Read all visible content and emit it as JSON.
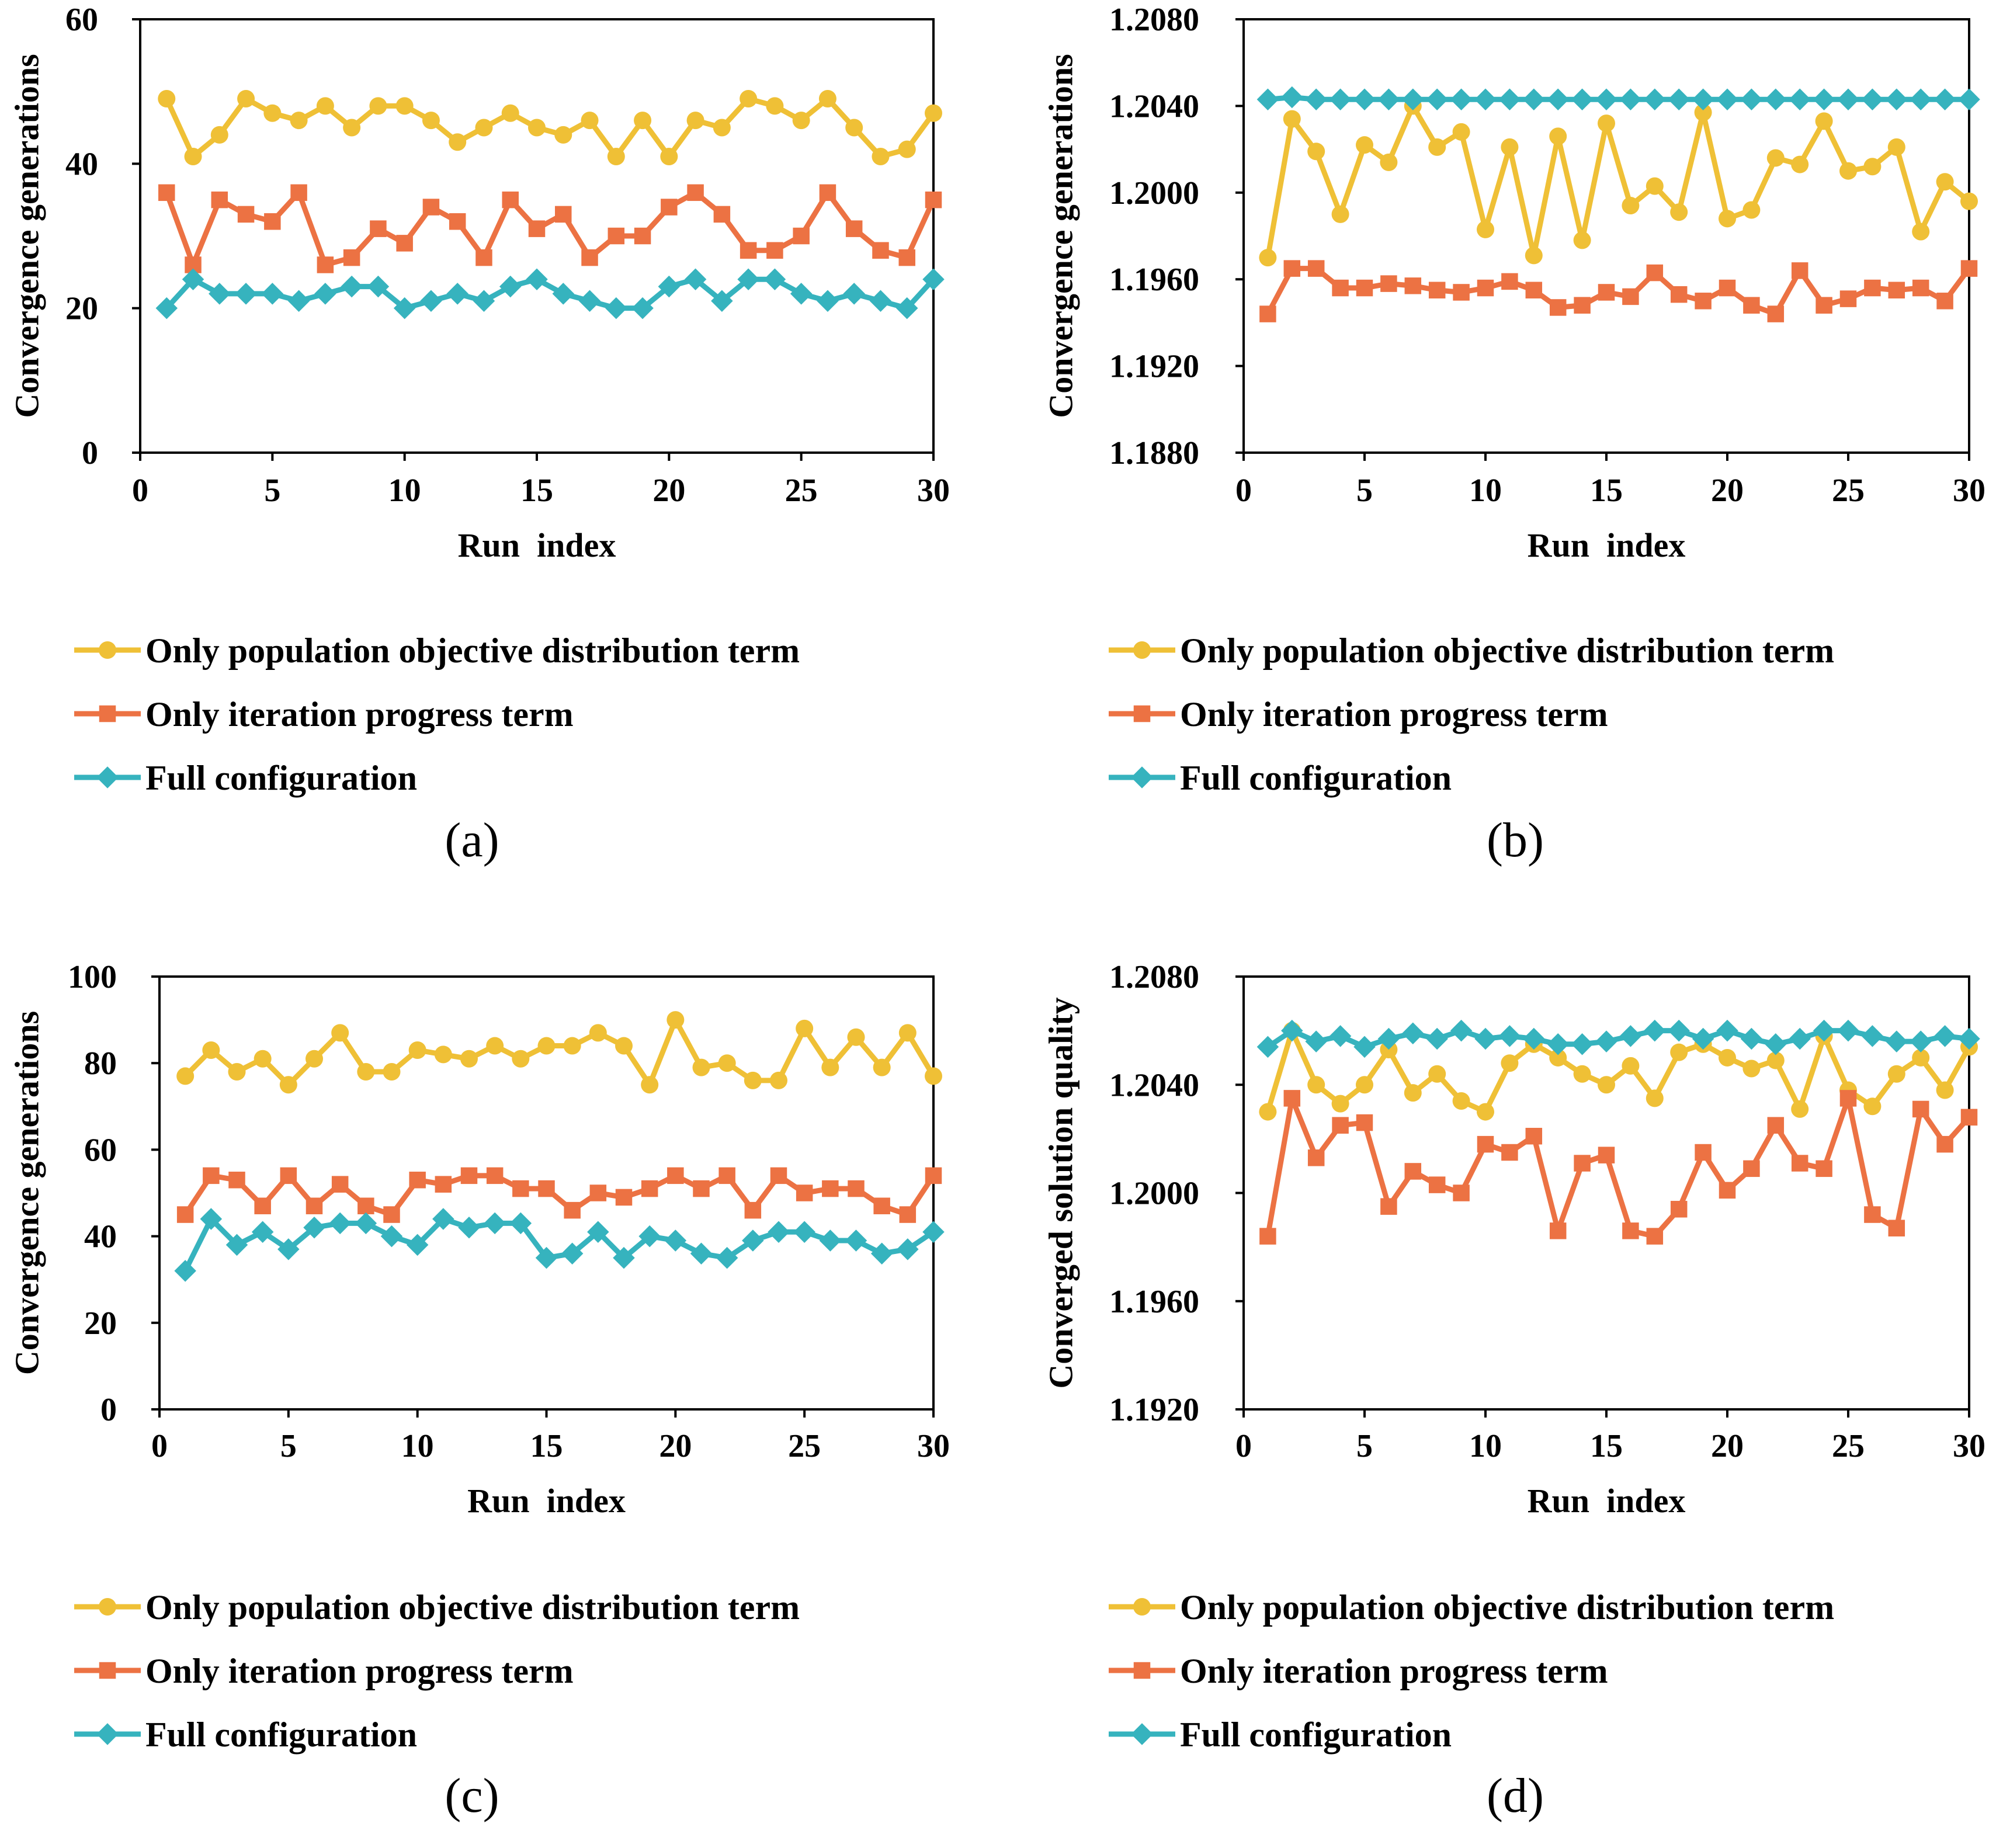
{
  "colors": {
    "yellow": "#EFC036",
    "orange": "#EC7243",
    "teal": "#36B3BE"
  },
  "chart_data": [
    {
      "type": "line",
      "panel_label": "(a)",
      "title": "",
      "xlabel": "Run  index",
      "ylabel": "Convergence generations",
      "xlim": [
        0,
        30
      ],
      "ylim": [
        0,
        60
      ],
      "xticks": [
        0,
        5,
        10,
        15,
        20,
        25,
        30
      ],
      "yticks": [
        0,
        20,
        40,
        60
      ],
      "ytick_labels": [
        "0",
        "20",
        "40",
        "60"
      ],
      "x": [
        1,
        2,
        3,
        4,
        5,
        6,
        7,
        8,
        9,
        10,
        11,
        12,
        13,
        14,
        15,
        16,
        17,
        18,
        19,
        20,
        21,
        22,
        23,
        24,
        25,
        26,
        27,
        28,
        29,
        30
      ],
      "legend_position": "below",
      "series": [
        {
          "name": "Only population objective distribution term",
          "color": "#EFC036",
          "marker": "circle",
          "values": [
            49,
            41,
            44,
            49,
            47,
            46,
            48,
            45,
            48,
            48,
            46,
            43,
            45,
            47,
            45,
            44,
            46,
            41,
            46,
            41,
            46,
            45,
            49,
            48,
            46,
            49,
            45,
            41,
            42,
            47
          ]
        },
        {
          "name": "Only iteration progress term",
          "color": "#EC7243",
          "marker": "square",
          "values": [
            36,
            26,
            35,
            33,
            32,
            36,
            26,
            27,
            31,
            29,
            34,
            32,
            27,
            35,
            31,
            33,
            27,
            30,
            30,
            34,
            36,
            33,
            28,
            28,
            30,
            36,
            31,
            28,
            27,
            35
          ]
        },
        {
          "name": "Full configuration",
          "color": "#36B3BE",
          "marker": "diamond",
          "values": [
            20,
            24,
            22,
            22,
            22,
            21,
            22,
            23,
            23,
            20,
            21,
            22,
            21,
            23,
            24,
            22,
            21,
            20,
            20,
            23,
            24,
            21,
            24,
            24,
            22,
            21,
            22,
            21,
            20,
            24
          ]
        }
      ]
    },
    {
      "type": "line",
      "panel_label": "(b)",
      "title": "",
      "xlabel": "Run  index",
      "ylabel": "Convergence generations",
      "xlim": [
        0,
        30
      ],
      "ylim": [
        1.188,
        1.208
      ],
      "xticks": [
        0,
        5,
        10,
        15,
        20,
        25,
        30
      ],
      "yticks": [
        1.188,
        1.192,
        1.196,
        1.2,
        1.204,
        1.208
      ],
      "ytick_labels": [
        "1.1880",
        "1.1920",
        "1.1960",
        "1.2000",
        "1.2040",
        "1.2080"
      ],
      "x": [
        1,
        2,
        3,
        4,
        5,
        6,
        7,
        8,
        9,
        10,
        11,
        12,
        13,
        14,
        15,
        16,
        17,
        18,
        19,
        20,
        21,
        22,
        23,
        24,
        25,
        26,
        27,
        28,
        29,
        30
      ],
      "legend_position": "below",
      "series": [
        {
          "name": "Only population objective distribution term",
          "color": "#EFC036",
          "marker": "circle",
          "values": [
            1.197,
            1.2034,
            1.2019,
            1.199,
            1.2022,
            1.2014,
            1.204,
            1.2021,
            1.2028,
            1.1983,
            1.2021,
            1.1971,
            1.2026,
            1.1978,
            1.2032,
            1.1994,
            1.2003,
            1.1991,
            1.2037,
            1.1988,
            1.1992,
            1.2016,
            1.2013,
            1.2033,
            1.201,
            1.2012,
            1.2021,
            1.1982,
            1.2005,
            1.1996
          ]
        },
        {
          "name": "Only iteration progress term",
          "color": "#EC7243",
          "marker": "square",
          "values": [
            1.1944,
            1.1965,
            1.1965,
            1.1956,
            1.1956,
            1.1958,
            1.1957,
            1.1955,
            1.1954,
            1.1956,
            1.1959,
            1.1955,
            1.1947,
            1.1948,
            1.1954,
            1.1952,
            1.1963,
            1.1953,
            1.195,
            1.1956,
            1.1948,
            1.1944,
            1.1964,
            1.1948,
            1.1951,
            1.1956,
            1.1955,
            1.1956,
            1.195,
            1.1965
          ]
        },
        {
          "name": "Full configuration",
          "color": "#36B3BE",
          "marker": "diamond",
          "values": [
            1.2043,
            1.2044,
            1.2043,
            1.2043,
            1.2043,
            1.2043,
            1.2043,
            1.2043,
            1.2043,
            1.2043,
            1.2043,
            1.2043,
            1.2043,
            1.2043,
            1.2043,
            1.2043,
            1.2043,
            1.2043,
            1.2043,
            1.2043,
            1.2043,
            1.2043,
            1.2043,
            1.2043,
            1.2043,
            1.2043,
            1.2043,
            1.2043,
            1.2043,
            1.2043
          ]
        }
      ]
    },
    {
      "type": "line",
      "panel_label": "(c)",
      "title": "",
      "xlabel": "Run  index",
      "ylabel": "Convergence generations",
      "xlim": [
        0,
        30
      ],
      "ylim": [
        0,
        100
      ],
      "xticks": [
        0,
        5,
        10,
        15,
        20,
        25,
        30
      ],
      "yticks": [
        0,
        20,
        40,
        60,
        80,
        100
      ],
      "ytick_labels": [
        "0",
        "20",
        "40",
        "60",
        "80",
        "100"
      ],
      "x": [
        1,
        2,
        3,
        4,
        5,
        6,
        7,
        8,
        9,
        10,
        11,
        12,
        13,
        14,
        15,
        16,
        17,
        18,
        19,
        20,
        21,
        22,
        23,
        24,
        25,
        26,
        27,
        28,
        29,
        30
      ],
      "legend_position": "below",
      "series": [
        {
          "name": "Only population objective distribution term",
          "color": "#EFC036",
          "marker": "circle",
          "values": [
            77,
            83,
            78,
            81,
            75,
            81,
            87,
            78,
            78,
            83,
            82,
            81,
            84,
            81,
            84,
            84,
            87,
            84,
            75,
            90,
            79,
            80,
            76,
            76,
            88,
            79,
            86,
            79,
            87,
            77
          ]
        },
        {
          "name": "Only iteration progress term",
          "color": "#EC7243",
          "marker": "square",
          "values": [
            45,
            54,
            53,
            47,
            54,
            47,
            52,
            47,
            45,
            53,
            52,
            54,
            54,
            51,
            51,
            46,
            50,
            49,
            51,
            54,
            51,
            54,
            46,
            54,
            50,
            51,
            51,
            47,
            45,
            54
          ]
        },
        {
          "name": "Full configuration",
          "color": "#36B3BE",
          "marker": "diamond",
          "values": [
            32,
            44,
            38,
            41,
            37,
            42,
            43,
            43,
            40,
            38,
            44,
            42,
            43,
            43,
            35,
            36,
            41,
            35,
            40,
            39,
            36,
            35,
            39,
            41,
            41,
            39,
            39,
            36,
            37,
            41
          ]
        }
      ]
    },
    {
      "type": "line",
      "panel_label": "(d)",
      "title": "",
      "xlabel": "Run  index",
      "ylabel": "Converged solution quality",
      "xlim": [
        0,
        30
      ],
      "ylim": [
        1.192,
        1.208
      ],
      "xticks": [
        0,
        5,
        10,
        15,
        20,
        25,
        30
      ],
      "yticks": [
        1.192,
        1.196,
        1.2,
        1.204,
        1.208
      ],
      "ytick_labels": [
        "1.1920",
        "1.1960",
        "1.2000",
        "1.2040",
        "1.2080"
      ],
      "x": [
        1,
        2,
        3,
        4,
        5,
        6,
        7,
        8,
        9,
        10,
        11,
        12,
        13,
        14,
        15,
        16,
        17,
        18,
        19,
        20,
        21,
        22,
        23,
        24,
        25,
        26,
        27,
        28,
        29,
        30
      ],
      "legend_position": "below",
      "series": [
        {
          "name": "Only population objective distribution term",
          "color": "#EFC036",
          "marker": "circle",
          "values": [
            1.203,
            1.206,
            1.204,
            1.2033,
            1.204,
            1.2053,
            1.2037,
            1.2044,
            1.2034,
            1.203,
            1.2048,
            1.2055,
            1.205,
            1.2044,
            1.204,
            1.2047,
            1.2035,
            1.2052,
            1.2055,
            1.205,
            1.2046,
            1.2049,
            1.2031,
            1.2058,
            1.2038,
            1.2032,
            1.2044,
            1.205,
            1.2038,
            1.2054
          ]
        },
        {
          "name": "Only iteration progress term",
          "color": "#EC7243",
          "marker": "square",
          "values": [
            1.1984,
            1.2035,
            1.2013,
            1.2025,
            1.2026,
            1.1995,
            1.2008,
            1.2003,
            1.2,
            1.2018,
            1.2015,
            1.2021,
            1.1986,
            1.2011,
            1.2014,
            1.1986,
            1.1984,
            1.1994,
            1.2015,
            1.2001,
            1.2009,
            1.2025,
            1.2011,
            1.2009,
            1.2035,
            1.1992,
            1.1987,
            1.2031,
            1.2018,
            1.2028
          ]
        },
        {
          "name": "Full configuration",
          "color": "#36B3BE",
          "marker": "diamond",
          "values": [
            1.2054,
            1.206,
            1.2056,
            1.2058,
            1.2054,
            1.2057,
            1.2059,
            1.2057,
            1.206,
            1.2057,
            1.2058,
            1.2057,
            1.2055,
            1.2055,
            1.2056,
            1.2058,
            1.206,
            1.206,
            1.2057,
            1.206,
            1.2057,
            1.2055,
            1.2057,
            1.206,
            1.206,
            1.2058,
            1.2056,
            1.2056,
            1.2058,
            1.2057
          ]
        }
      ]
    }
  ]
}
